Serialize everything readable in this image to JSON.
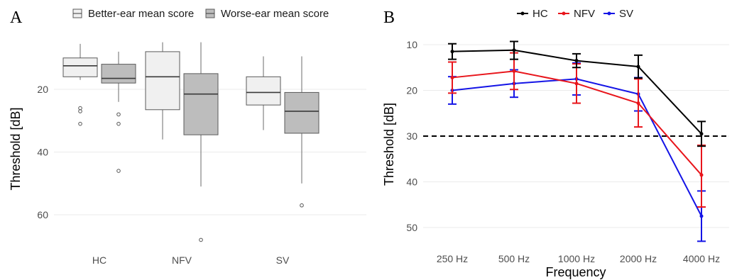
{
  "chart_data": [
    {
      "type": "boxplot",
      "panel_label": "A",
      "ylabel": "Threshold [dB]",
      "y_reversed": true,
      "ylim": [
        4,
        72
      ],
      "yticks": [
        20,
        40,
        60
      ],
      "categories": [
        "HC",
        "NFV",
        "SV"
      ],
      "legend_position": "top",
      "series": [
        {
          "name": "Better-ear mean score",
          "color": "#f0f0f0",
          "boxes": [
            {
              "category": "HC",
              "whisker_low": 5.5,
              "q1": 10,
              "median": 12.5,
              "q3": 16,
              "whisker_high": 17,
              "outliers": [
                26,
                27,
                31
              ]
            },
            {
              "category": "NFV",
              "whisker_low": 5,
              "q1": 8,
              "median": 16,
              "q3": 26.5,
              "whisker_high": 36,
              "outliers": []
            },
            {
              "category": "SV",
              "whisker_low": 9.5,
              "q1": 16,
              "median": 21,
              "q3": 25,
              "whisker_high": 33,
              "outliers": []
            }
          ]
        },
        {
          "name": "Worse-ear mean score",
          "color": "#bdbdbd",
          "boxes": [
            {
              "category": "HC",
              "whisker_low": 8,
              "q1": 12,
              "median": 16.5,
              "q3": 18,
              "whisker_high": 24,
              "outliers": [
                28,
                31,
                46
              ]
            },
            {
              "category": "NFV",
              "whisker_low": 5,
              "q1": 15,
              "median": 21.5,
              "q3": 34.5,
              "whisker_high": 51,
              "outliers": [
                68
              ]
            },
            {
              "category": "SV",
              "whisker_low": 9.5,
              "q1": 21,
              "median": 27,
              "q3": 34,
              "whisker_high": 50,
              "outliers": [
                57
              ]
            }
          ]
        }
      ]
    },
    {
      "type": "line",
      "panel_label": "B",
      "xlabel": "Frequency",
      "ylabel": "Threshold [dB]",
      "y_reversed": true,
      "ylim": [
        6,
        55
      ],
      "yticks": [
        10,
        20,
        30,
        40,
        50
      ],
      "categories": [
        "250 Hz",
        "500 Hz",
        "1000 Hz",
        "2000 Hz",
        "4000 Hz"
      ],
      "reference_line": {
        "y": 30,
        "style": "dashed"
      },
      "legend_position": "top",
      "series": [
        {
          "name": "HC",
          "color": "#000000",
          "values": [
            11.5,
            11.2,
            13.5,
            14.8,
            29.5
          ],
          "err_low": [
            9.8,
            9.3,
            12.0,
            12.3,
            26.8
          ],
          "err_high": [
            13.2,
            13.2,
            15.0,
            17.3,
            32.2
          ]
        },
        {
          "name": "NFV",
          "color": "#e8151b",
          "values": [
            17.2,
            15.8,
            18.5,
            22.8,
            38.5
          ],
          "err_low": [
            13.8,
            11.8,
            14.2,
            17.5,
            32.0
          ],
          "err_high": [
            20.6,
            19.8,
            22.8,
            28.0,
            45.5
          ]
        },
        {
          "name": "SV",
          "color": "#1414e6",
          "values": [
            20.0,
            18.5,
            17.5,
            20.8,
            47.5
          ],
          "err_low": [
            17.0,
            15.5,
            14.0,
            17.2,
            42.0
          ],
          "err_high": [
            23.0,
            21.5,
            21.0,
            24.5,
            53.0
          ]
        }
      ]
    }
  ]
}
